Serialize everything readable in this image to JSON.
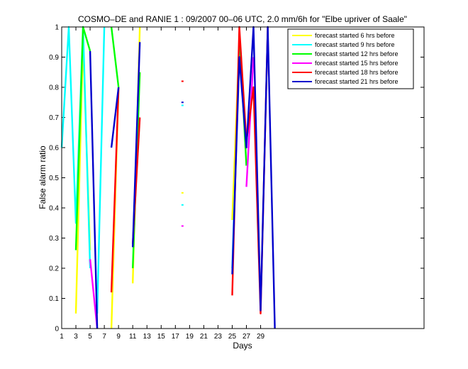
{
  "chart_data": {
    "type": "line",
    "title": "COSMO–DE and RANIE 1 : 09/2007 00–06 UTC, 2.0 mm/6h for \"Elbe upriver of Saale\"",
    "xlabel": "Days",
    "ylabel": "False alarm ratio",
    "xlim": [
      1,
      52
    ],
    "ylim": [
      0,
      1
    ],
    "xticks": [
      1,
      3,
      5,
      7,
      9,
      11,
      13,
      15,
      17,
      19,
      21,
      23,
      25,
      27,
      29
    ],
    "yticks": [
      0,
      0.1,
      0.2,
      0.3,
      0.4,
      0.5,
      0.6,
      0.7,
      0.8,
      0.9,
      1
    ],
    "ytick_labels": [
      "0",
      "0.1",
      "0.2",
      "0.3",
      "0.4",
      "0.5",
      "0.6",
      "0.7",
      "0.8",
      "0.9",
      "1"
    ],
    "legend_position": "top-right",
    "series": [
      {
        "name": "forecast started 6 hrs before",
        "color": "#ffff00",
        "segments": [
          [
            [
              3,
              0.05
            ],
            [
              4,
              0.95
            ],
            [
              5,
              0.26
            ]
          ],
          [
            [
              8,
              0.0
            ],
            [
              9,
              0.8
            ]
          ],
          [
            [
              11,
              0.15
            ],
            [
              12,
              1.0
            ]
          ],
          [
            [
              18,
              0.45
            ]
          ],
          [
            [
              25,
              0.36
            ],
            [
              26,
              0.95
            ],
            [
              27,
              0.6
            ]
          ]
        ]
      },
      {
        "name": "forecast started 9 hrs before",
        "color": "#00ffff",
        "segments": [
          [
            [
              1,
              0.6
            ],
            [
              2,
              1.0
            ],
            [
              3,
              0.35
            ],
            [
              4,
              1.0
            ],
            [
              5,
              0.2
            ]
          ],
          [
            [
              6,
              0.05
            ],
            [
              7,
              1.0
            ]
          ],
          [
            [
              18,
              0.41
            ]
          ],
          [
            [
              18,
              0.74
            ]
          ],
          [
            [
              25,
              0.2
            ],
            [
              26,
              0.92
            ],
            [
              27,
              0.6
            ]
          ]
        ]
      },
      {
        "name": "forecast started 12 hrs before",
        "color": "#00ff00",
        "segments": [
          [
            [
              3,
              0.26
            ],
            [
              4,
              1.0
            ],
            [
              5,
              0.92
            ]
          ],
          [
            [
              8,
              1.0
            ],
            [
              9,
              0.8
            ]
          ],
          [
            [
              11,
              0.2
            ],
            [
              12,
              0.85
            ]
          ],
          [
            [
              26,
              0.98
            ],
            [
              27,
              0.54
            ]
          ]
        ]
      },
      {
        "name": "forecast started 15 hrs before",
        "color": "#ff00ff",
        "segments": [
          [
            [
              5,
              0.23
            ],
            [
              6,
              0.0
            ]
          ],
          [
            [
              18,
              0.34
            ]
          ],
          [
            [
              27,
              0.47
            ],
            [
              28,
              0.9
            ]
          ]
        ]
      },
      {
        "name": "forecast started 18 hrs before",
        "color": "#ff0000",
        "segments": [
          [
            [
              8,
              0.12
            ],
            [
              9,
              0.8
            ]
          ],
          [
            [
              11,
              0.28
            ],
            [
              12,
              0.7
            ]
          ],
          [
            [
              18,
              0.82
            ]
          ],
          [
            [
              25,
              0.11
            ],
            [
              26,
              1.0
            ],
            [
              27,
              0.62
            ],
            [
              28,
              0.8
            ],
            [
              29,
              0.05
            ],
            [
              30,
              1.0
            ]
          ]
        ]
      },
      {
        "name": "forecast started 21 hrs before",
        "color": "#0000cc",
        "segments": [
          [
            [
              5,
              0.92
            ],
            [
              6,
              0.0
            ]
          ],
          [
            [
              8,
              0.6
            ],
            [
              9,
              0.8
            ]
          ],
          [
            [
              11,
              0.27
            ],
            [
              12,
              0.95
            ]
          ],
          [
            [
              18,
              0.75
            ]
          ],
          [
            [
              25,
              0.18
            ],
            [
              26,
              0.9
            ],
            [
              27,
              0.6
            ],
            [
              28,
              1.0
            ],
            [
              29,
              0.06
            ],
            [
              30,
              1.0
            ],
            [
              31,
              0.0
            ]
          ]
        ]
      }
    ]
  }
}
